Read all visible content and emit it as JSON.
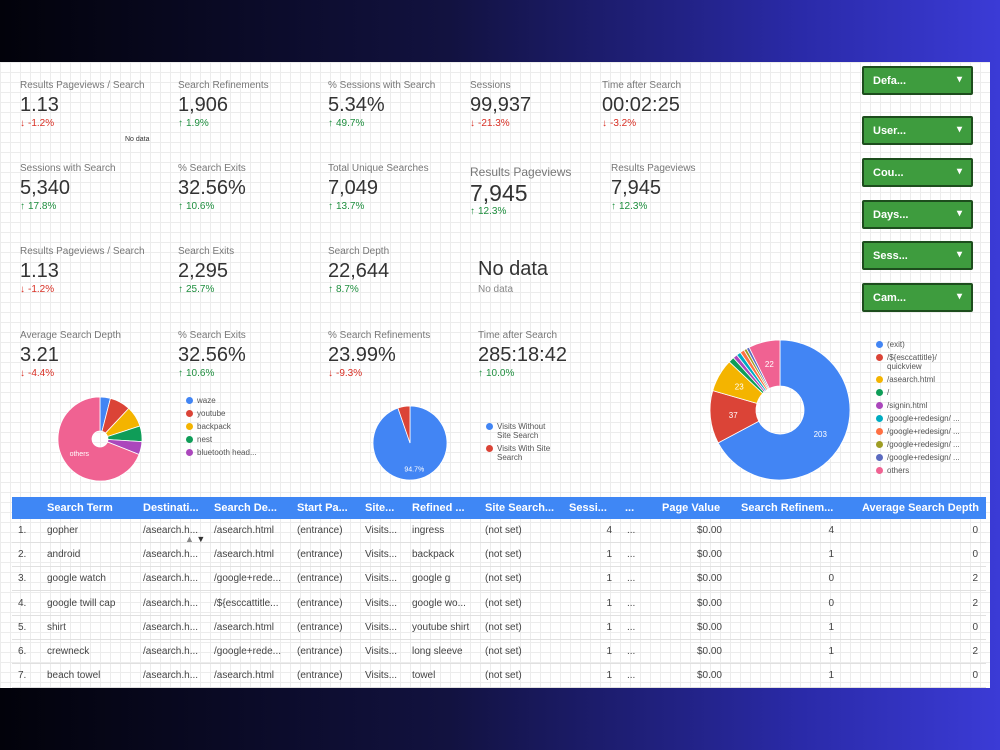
{
  "no_data_note": "No data",
  "kpis": [
    [
      {
        "label": "Results Pageviews / Search",
        "value": "1.13",
        "change": "-1.2%",
        "trend": "down"
      },
      {
        "label": "Search Refinements",
        "value": "1,906",
        "change": "1.9%",
        "trend": "up"
      },
      {
        "label": "% Sessions with Search",
        "value": "5.34%",
        "change": "49.7%",
        "trend": "up"
      },
      {
        "label": "Sessions",
        "value": "99,937",
        "change": "-21.3%",
        "trend": "down"
      },
      {
        "label": "Time after Search",
        "value": "00:02:25",
        "change": "-3.2%",
        "trend": "down"
      }
    ],
    [
      {
        "label": "Sessions with Search",
        "value": "5,340",
        "change": "17.8%",
        "trend": "up"
      },
      {
        "label": "% Search Exits",
        "value": "32.56%",
        "change": "10.6%",
        "trend": "up"
      },
      {
        "label": "Total Unique Searches",
        "value": "7,049",
        "change": "13.7%",
        "trend": "up"
      },
      {
        "label": "Results Pageviews",
        "value": "7,945",
        "change": "12.3%",
        "trend": "up"
      },
      {
        "label": "Results Pageviews",
        "value": "7,945",
        "change": "12.3%",
        "trend": "up"
      }
    ],
    [
      {
        "label": "Results Pageviews / Search",
        "value": "1.13",
        "change": "-1.2%",
        "trend": "down"
      },
      {
        "label": "Search Exits",
        "value": "2,295",
        "change": "25.7%",
        "trend": "up"
      },
      {
        "label": "Search Depth",
        "value": "22,644",
        "change": "8.7%",
        "trend": "up"
      },
      {
        "value": "No data",
        "change": "No data"
      }
    ],
    [
      {
        "label": "Average Search Depth",
        "value": "3.21",
        "change": "-4.4%",
        "trend": "down"
      },
      {
        "label": "% Search Exits",
        "value": "32.56%",
        "change": "10.6%",
        "trend": "up"
      },
      {
        "label": "% Search Refinements",
        "value": "23.99%",
        "change": "-9.3%",
        "trend": "down"
      },
      {
        "label": "Time after Search",
        "value": "285:18:42",
        "change": "10.0%",
        "trend": "up"
      }
    ]
  ],
  "filters": [
    "Defa...",
    "User...",
    "Cou...",
    "Days...",
    "Sess...",
    "Cam..."
  ],
  "pie_terms": {
    "slices": [
      {
        "name": "waze",
        "value": 4,
        "color": "#4285f4"
      },
      {
        "name": "youtube",
        "value": 8,
        "color": "#db4437"
      },
      {
        "name": "backpack",
        "value": 8,
        "color": "#f4b400"
      },
      {
        "name": "nest",
        "value": 6,
        "color": "#0f9d58"
      },
      {
        "name": "bluetooth head...",
        "value": 5,
        "color": "#ab47bc"
      },
      {
        "name": "others",
        "value": 69,
        "color": "#f06292"
      }
    ]
  },
  "pie_visits": {
    "slices": [
      {
        "name": "Visits Without Site Search",
        "value": 94.7,
        "value_label": "94.7%",
        "color": "#4285f4"
      },
      {
        "name": "Visits With Site Search",
        "value": 5.3,
        "color": "#db4437"
      }
    ]
  },
  "donut_pages": {
    "slices": [
      {
        "name": "(exit)",
        "value": 203,
        "color": "#4285f4"
      },
      {
        "name": "/${esccattitle}/ quickview",
        "value": 37,
        "color": "#db4437"
      },
      {
        "name": "/asearch.html",
        "value": 23,
        "color": "#f4b400"
      },
      {
        "name": "/",
        "value": 4,
        "color": "#0f9d58"
      },
      {
        "name": "/signin.html",
        "value": 3,
        "color": "#ab47bc"
      },
      {
        "name": "/google+redesign/ ...",
        "value": 3,
        "color": "#00acc1"
      },
      {
        "name": "/google+redesign/ ...",
        "value": 3,
        "color": "#ff7043"
      },
      {
        "name": "/google+redesign/ ...",
        "value": 2,
        "color": "#9e9d24"
      },
      {
        "name": "/google+redesign/ ...",
        "value": 2,
        "color": "#5c6bc0"
      },
      {
        "name": "others",
        "value": 22,
        "color": "#f06292"
      }
    ]
  },
  "table": {
    "columns": [
      "",
      "Search Term",
      "Destinati...",
      "Search De...",
      "Start Pa...",
      "Site...",
      "Refined ...",
      "Site Search...",
      "Sessi...",
      "...",
      "Page Value",
      "Search Refinem...",
      "Average Search Depth"
    ],
    "rows": [
      [
        "1.",
        "gopher",
        "/asearch.h...",
        "/asearch.html",
        "(entrance)",
        "Visits...",
        "ingress",
        "(not set)",
        "4",
        "...",
        "$0.00",
        "4",
        "0"
      ],
      [
        "2.",
        "android",
        "/asearch.h...",
        "/asearch.html",
        "(entrance)",
        "Visits...",
        "backpack",
        "(not set)",
        "1",
        "...",
        "$0.00",
        "1",
        "0"
      ],
      [
        "3.",
        "google watch",
        "/asearch.h...",
        "/google+rede...",
        "(entrance)",
        "Visits...",
        "google g",
        "(not set)",
        "1",
        "...",
        "$0.00",
        "0",
        "2"
      ],
      [
        "4.",
        "google twill cap",
        "/asearch.h...",
        "/${esccattitle...",
        "(entrance)",
        "Visits...",
        "google wo...",
        "(not set)",
        "1",
        "...",
        "$0.00",
        "0",
        "2"
      ],
      [
        "5.",
        "shirt",
        "/asearch.h...",
        "/asearch.html",
        "(entrance)",
        "Visits...",
        "youtube shirt",
        "(not set)",
        "1",
        "...",
        "$0.00",
        "1",
        "0"
      ],
      [
        "6.",
        "crewneck",
        "/asearch.h...",
        "/google+rede...",
        "(entrance)",
        "Visits...",
        "long sleeve",
        "(not set)",
        "1",
        "...",
        "$0.00",
        "1",
        "2"
      ],
      [
        "7.",
        "beach towel",
        "/asearch.h...",
        "/asearch.html",
        "(entrance)",
        "Visits...",
        "towel",
        "(not set)",
        "1",
        "...",
        "$0.00",
        "1",
        "0"
      ]
    ]
  }
}
